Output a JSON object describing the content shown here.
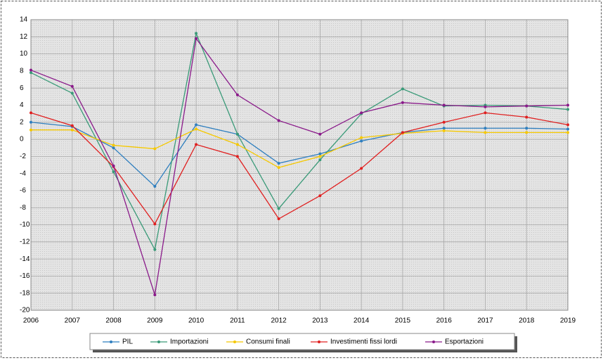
{
  "chart_data": {
    "type": "line",
    "categories": [
      "2006",
      "2007",
      "2008",
      "2009",
      "2010",
      "2011",
      "2012",
      "2013",
      "2014",
      "2015",
      "2016",
      "2017",
      "2018",
      "2019"
    ],
    "series": [
      {
        "name": "PIL",
        "color": "#2f7fbf",
        "values": [
          2.0,
          1.5,
          -1.0,
          -5.5,
          1.7,
          0.6,
          -2.8,
          -1.7,
          -0.2,
          0.8,
          1.3,
          1.3,
          1.3,
          1.2
        ]
      },
      {
        "name": "Importazioni",
        "color": "#3a9a78",
        "values": [
          7.8,
          5.4,
          -3.8,
          -12.9,
          12.4,
          0.6,
          -8.1,
          -2.4,
          3.0,
          5.9,
          3.9,
          4.0,
          3.9,
          3.5
        ]
      },
      {
        "name": "Consumi finali",
        "color": "#f5c800",
        "values": [
          1.1,
          1.1,
          -0.7,
          -1.1,
          1.2,
          -0.6,
          -3.3,
          -2.0,
          0.2,
          0.7,
          1.0,
          0.8,
          0.8,
          0.8
        ]
      },
      {
        "name": "Investimenti fissi lordi",
        "color": "#e02020",
        "values": [
          3.1,
          1.6,
          -3.2,
          -9.9,
          -0.6,
          -2.0,
          -9.3,
          -6.6,
          -3.4,
          0.8,
          2.0,
          3.1,
          2.6,
          1.7
        ]
      },
      {
        "name": "Esportazioni",
        "color": "#8a1a8a",
        "values": [
          8.1,
          6.2,
          -3.1,
          -18.2,
          11.8,
          5.2,
          2.2,
          0.6,
          3.1,
          4.3,
          4.0,
          3.8,
          3.9,
          4.0
        ]
      }
    ],
    "ylim": [
      -20,
      14
    ],
    "yticks": [
      14,
      12,
      10,
      8,
      6,
      4,
      2,
      0,
      -2,
      -4,
      -6,
      -8,
      -10,
      -12,
      -14,
      -16,
      -18,
      -20
    ],
    "grid": true
  }
}
